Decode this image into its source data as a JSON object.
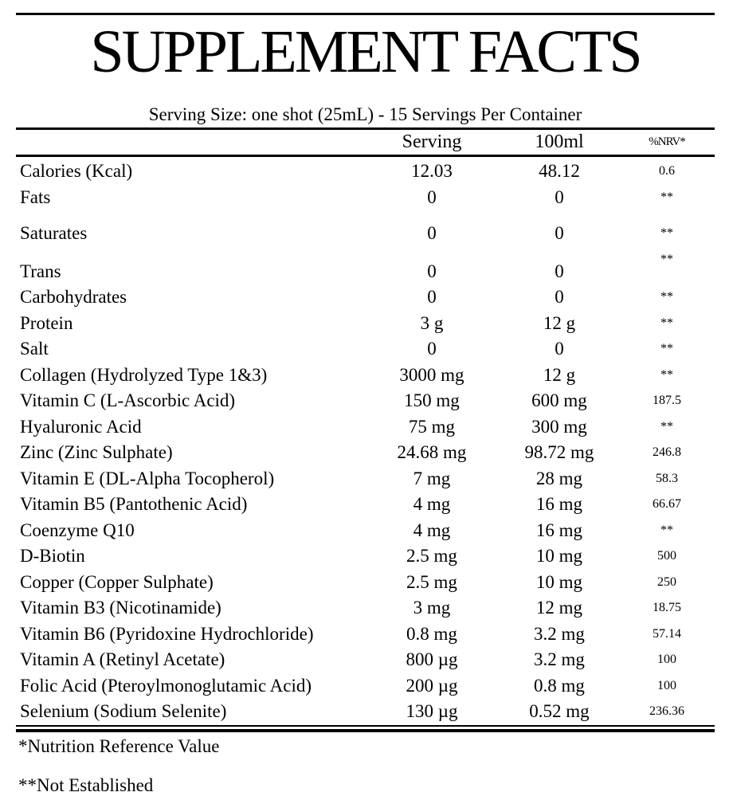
{
  "label": {
    "title": "SUPPLEMENT FACTS",
    "serving_info": "Serving Size: one shot (25mL) -  15 Servings Per Container",
    "table": {
      "columns": {
        "serving": "Serving",
        "per_100ml": "100ml",
        "nrv": "%NRV*"
      },
      "rows": [
        {
          "name": "Calories (Kcal)",
          "serving": "12.03",
          "per_100ml": "48.12",
          "nrv": "0.6"
        },
        {
          "name": "Fats",
          "serving": "0",
          "per_100ml": "0",
          "nrv": "**"
        },
        {
          "name": "Saturates",
          "serving": "0",
          "per_100ml": "0",
          "nrv": "**"
        },
        {
          "name": "Trans",
          "serving": "0",
          "per_100ml": "0",
          "nrv": "**"
        },
        {
          "name": "Carbohydrates",
          "serving": "0",
          "per_100ml": "0",
          "nrv": "**"
        },
        {
          "name": "Protein",
          "serving": "3 g",
          "per_100ml": "12 g",
          "nrv": "**"
        },
        {
          "name": "Salt",
          "serving": "0",
          "per_100ml": "0",
          "nrv": "**"
        },
        {
          "name": "Collagen (Hydrolyzed Type 1&3)",
          "serving": "3000 mg",
          "per_100ml": "12 g",
          "nrv": "**"
        },
        {
          "name": "Vitamin C (L-Ascorbic Acid)",
          "serving": "150 mg",
          "per_100ml": "600 mg",
          "nrv": "187.5"
        },
        {
          "name": "Hyaluronic Acid",
          "serving": "75 mg",
          "per_100ml": "300 mg",
          "nrv": "**"
        },
        {
          "name": "Zinc (Zinc Sulphate)",
          "serving": "24.68 mg",
          "per_100ml": "98.72 mg",
          "nrv": "246.8"
        },
        {
          "name": "Vitamin E (DL-Alpha Tocopherol)",
          "serving": "7 mg",
          "per_100ml": "28 mg",
          "nrv": "58.3"
        },
        {
          "name": "Vitamin B5 (Pantothenic Acid)",
          "serving": "4 mg",
          "per_100ml": "16 mg",
          "nrv": "66.67"
        },
        {
          "name": "Coenzyme Q10",
          "serving": "4 mg",
          "per_100ml": "16 mg",
          "nrv": "**"
        },
        {
          "name": "D-Biotin",
          "serving": "2.5 mg",
          "per_100ml": "10 mg",
          "nrv": "500"
        },
        {
          "name": "Copper (Copper Sulphate)",
          "serving": "2.5 mg",
          "per_100ml": "10 mg",
          "nrv": "250"
        },
        {
          "name": "Vitamin B3 (Nicotinamide)",
          "serving": "3 mg",
          "per_100ml": "12 mg",
          "nrv": "18.75"
        },
        {
          "name": "Vitamin B6 (Pyridoxine Hydrochloride)",
          "serving": "0.8 mg",
          "per_100ml": "3.2 mg",
          "nrv": "57.14"
        },
        {
          "name": "Vitamin A (Retinyl Acetate)",
          "serving": "800 µg",
          "per_100ml": "3.2 mg",
          "nrv": "100"
        },
        {
          "name": "Folic Acid (Pteroylmonoglutamic Acid)",
          "serving": "200 µg",
          "per_100ml": "0.8 mg",
          "nrv": "100"
        },
        {
          "name": "Selenium (Sodium Selenite)",
          "serving": "130 µg",
          "per_100ml": "0.52 mg",
          "nrv": "236.36"
        }
      ]
    },
    "footnotes": {
      "nrv": "*Nutrition Reference Value",
      "not_established": "**Not Established"
    },
    "colors": {
      "text": "#000000",
      "rule": "#000000",
      "background": "#ffffff"
    }
  }
}
